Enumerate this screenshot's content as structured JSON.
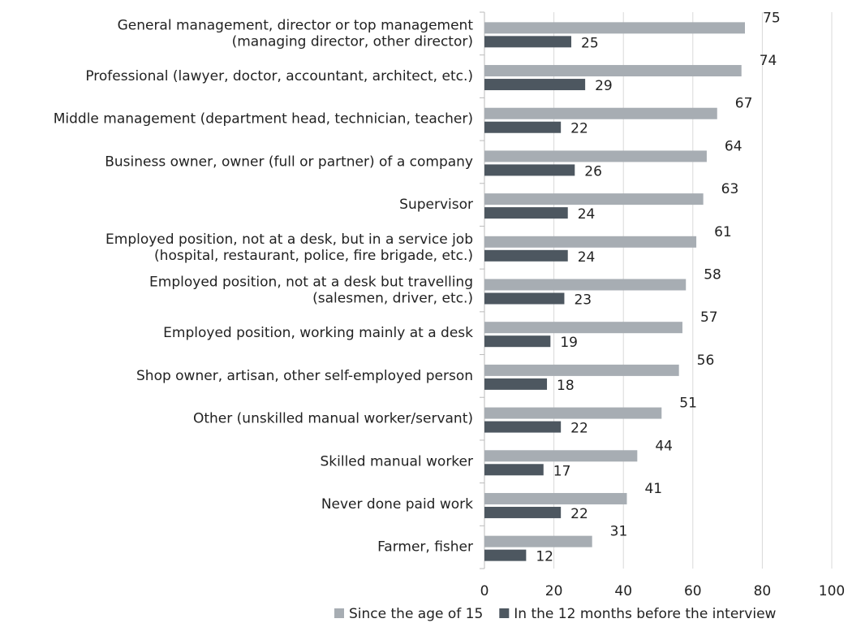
{
  "chart_data": {
    "type": "bar",
    "orientation": "horizontal",
    "categories": [
      "General management, director or top management\n(managing director, other director)",
      "Professional (lawyer, doctor, accountant, architect, etc.)",
      "Middle management (department head, technician, teacher)",
      "Business owner, owner (full or partner) of a company",
      "Supervisor",
      "Employed position, not at a desk, but in a service job\n(hospital, restaurant, police, fire brigade, etc.)",
      "Employed position, not at a desk but travelling\n(salesmen, driver, etc.)",
      "Employed position, working mainly at a desk",
      "Shop owner, artisan, other self-employed person",
      "Other (unskilled manual worker/servant)",
      "Skilled manual worker",
      "Never done paid work",
      "Farmer, fisher"
    ],
    "series": [
      {
        "name": "Since the age of 15",
        "color": "#a7adb3",
        "values": [
          75,
          74,
          67,
          64,
          63,
          61,
          58,
          57,
          56,
          51,
          44,
          41,
          31
        ]
      },
      {
        "name": "In the 12 months before the interview",
        "color": "#4d5760",
        "values": [
          25,
          29,
          22,
          26,
          24,
          24,
          23,
          19,
          18,
          22,
          17,
          22,
          12
        ]
      }
    ],
    "xlim": [
      0,
      100
    ],
    "xticks": [
      0,
      20,
      40,
      60,
      80,
      100
    ],
    "grid": true,
    "legend": "bottom"
  }
}
